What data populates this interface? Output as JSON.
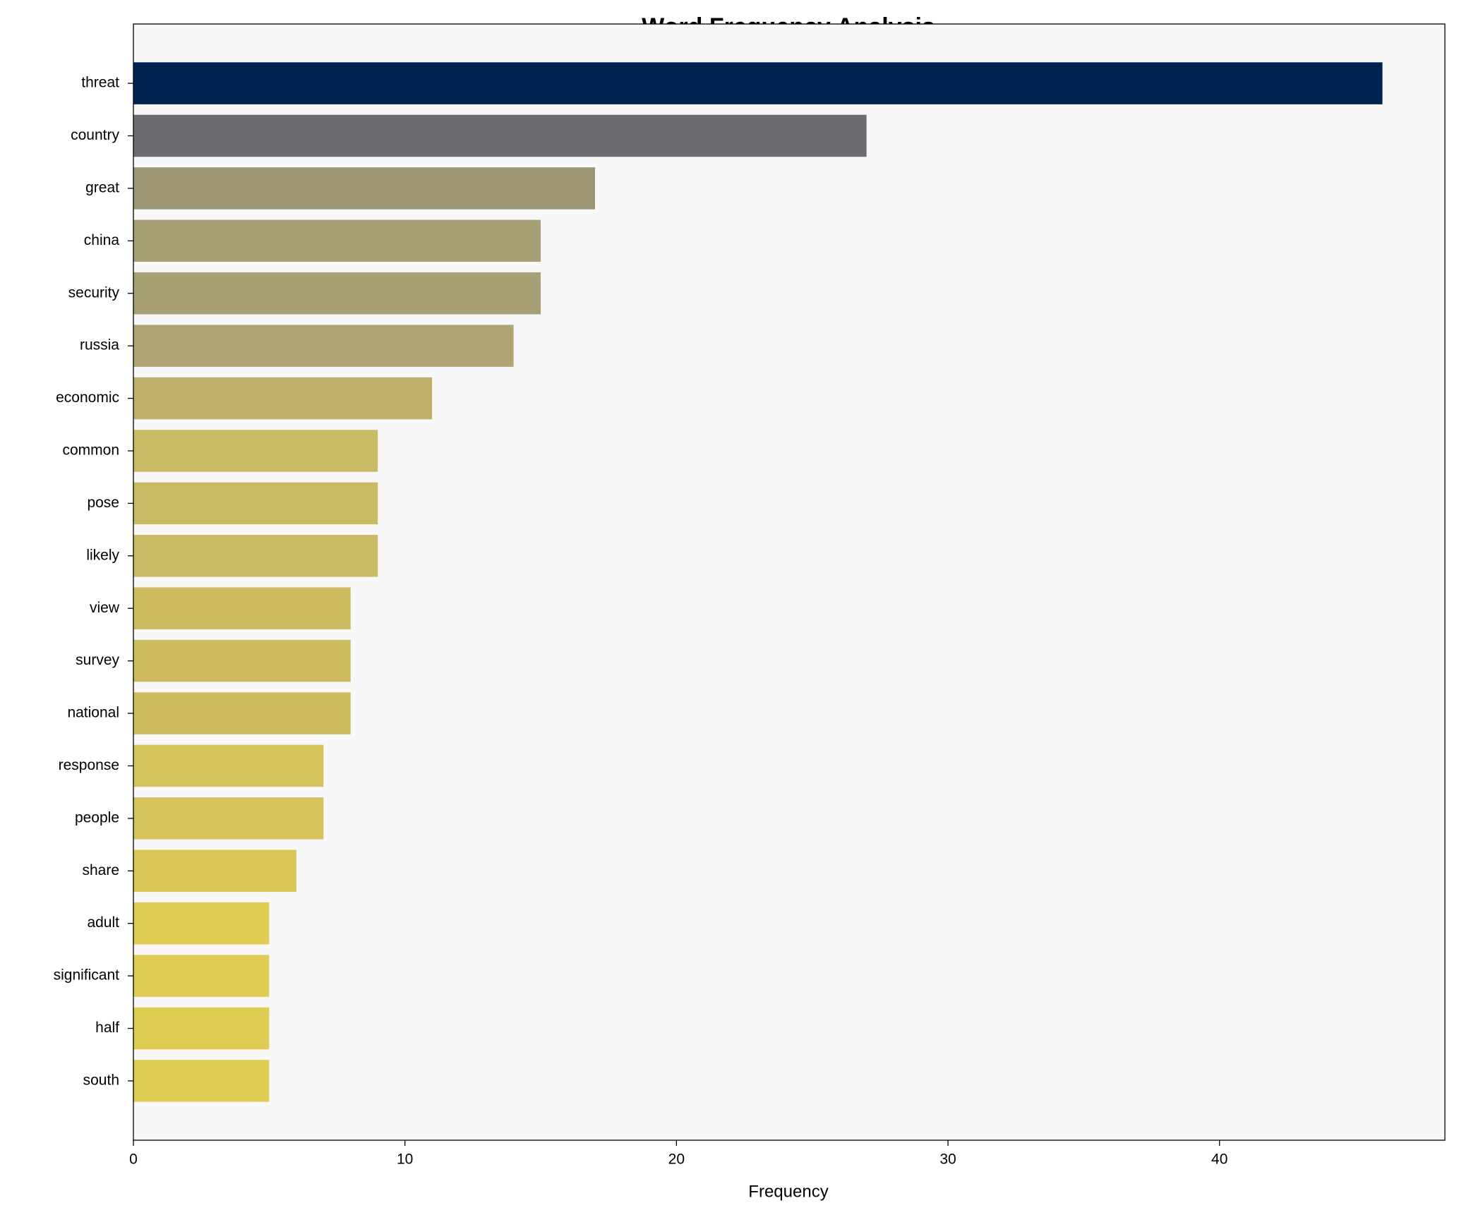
{
  "chart_data": {
    "type": "barh",
    "title": "Word Frequency Analysis",
    "x_label": "Frequency",
    "categories": [
      "threat",
      "country",
      "great",
      "china",
      "security",
      "russia",
      "economic",
      "common",
      "pose",
      "likely",
      "view",
      "survey",
      "national",
      "response",
      "people",
      "share",
      "adult",
      "significant",
      "half",
      "south"
    ],
    "values": [
      46,
      27,
      17,
      15,
      15,
      14,
      11,
      9,
      9,
      9,
      8,
      8,
      8,
      7,
      7,
      6,
      5,
      5,
      5,
      5
    ],
    "colors": [
      "#00224e",
      "#6b6c71",
      "#9c9674",
      "#a7a075",
      "#a7a075",
      "#aea474",
      "#c0af6b",
      "#c9bb63",
      "#c9bb63",
      "#c9bb63",
      "#cdbd60",
      "#cdbd60",
      "#cdbd60",
      "#d4c25d",
      "#d4c25d",
      "#d9c657",
      "#e0cc52",
      "#e0cc52",
      "#e0cc52",
      "#e0cc52"
    ],
    "xlim": [
      0,
      48.3
    ],
    "xticks": [
      0,
      10,
      20,
      30,
      40
    ],
    "grid": false
  }
}
